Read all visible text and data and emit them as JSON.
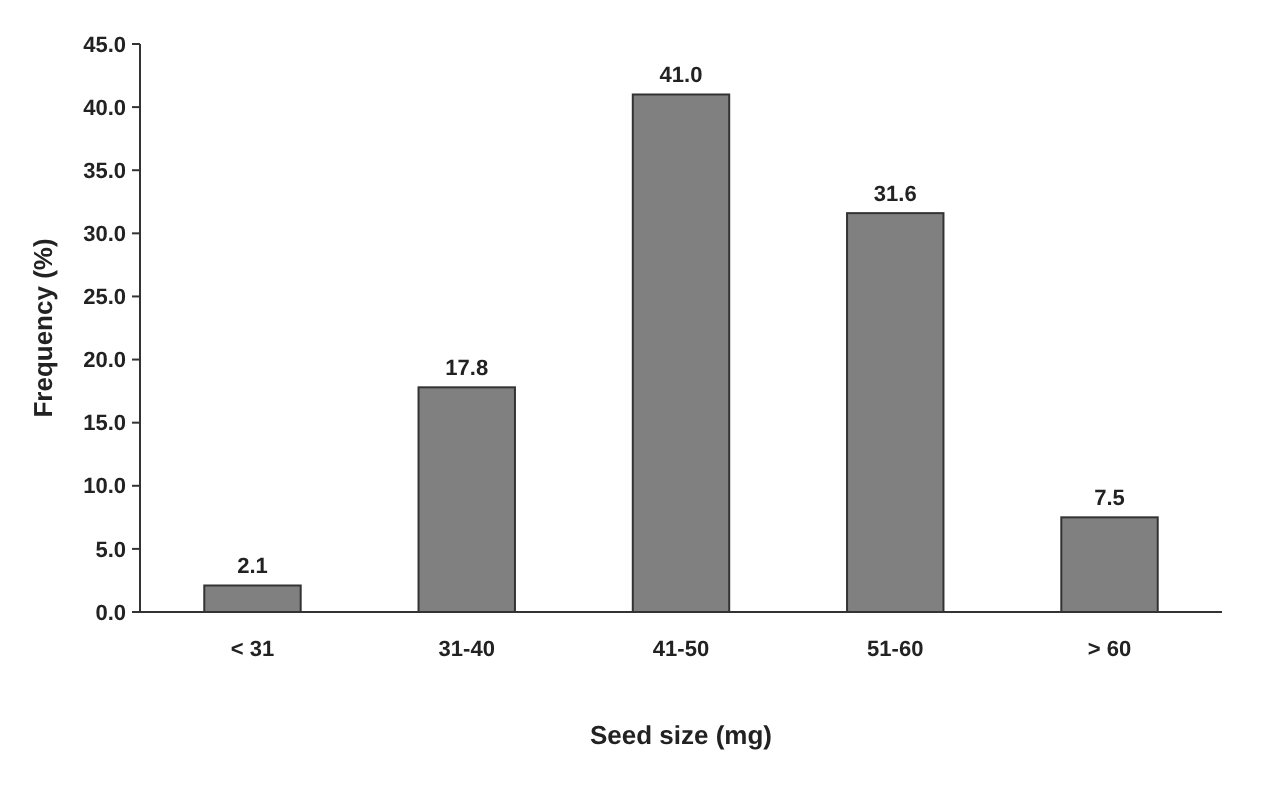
{
  "chart_data": {
    "type": "bar",
    "xlabel": "Seed size (mg)",
    "ylabel": "Frequency (%)",
    "categories": [
      "< 31",
      "31-40",
      "41-50",
      "51-60",
      "> 60"
    ],
    "values": [
      2.1,
      17.8,
      41.0,
      31.6,
      7.5
    ],
    "value_labels": [
      "2.1",
      "17.8",
      "41.0",
      "31.6",
      "7.5"
    ],
    "color": "#808080",
    "ylim": [
      0,
      45
    ],
    "yticks": [
      {
        "value": 0,
        "label": "0.0"
      },
      {
        "value": 5,
        "label": "5.0"
      },
      {
        "value": 10,
        "label": "10.0"
      },
      {
        "value": 15,
        "label": "15.0"
      },
      {
        "value": 20,
        "label": "20.0"
      },
      {
        "value": 25,
        "label": "25.0"
      },
      {
        "value": 30,
        "label": "30.0"
      },
      {
        "value": 35,
        "label": "35.0"
      },
      {
        "value": 40,
        "label": "40.0"
      },
      {
        "value": 45,
        "label": "45.0"
      }
    ]
  }
}
